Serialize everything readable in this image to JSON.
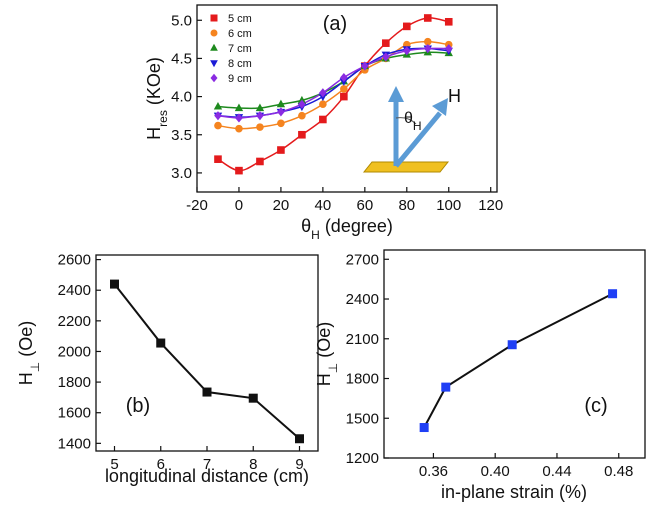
{
  "chart_data": [
    {
      "type": "scatter",
      "panel_label": "(a)",
      "xlabel": [
        {
          "text": "θ"
        },
        {
          "text": "H",
          "sub": true
        },
        {
          "text": " (degree)"
        }
      ],
      "ylabel": [
        {
          "text": "H"
        },
        {
          "text": "res",
          "sub": true
        },
        {
          "text": " (KOe)"
        }
      ],
      "inset_angle": [
        {
          "text": "θ"
        },
        {
          "text": "H",
          "sub": true
        }
      ],
      "inset_field": "H",
      "x": [
        -10,
        0,
        10,
        20,
        30,
        40,
        50,
        60,
        70,
        80,
        90,
        100
      ],
      "series": [
        {
          "name": "5 cm",
          "color": "#e41a1c",
          "marker": "square",
          "values": [
            3.18,
            3.03,
            3.15,
            3.3,
            3.5,
            3.7,
            4.0,
            4.4,
            4.7,
            4.92,
            5.03,
            4.98
          ]
        },
        {
          "name": "6 cm",
          "color": "#f5841f",
          "marker": "circle",
          "values": [
            3.62,
            3.58,
            3.6,
            3.65,
            3.75,
            3.9,
            4.1,
            4.35,
            4.5,
            4.68,
            4.72,
            4.68
          ]
        },
        {
          "name": "7 cm",
          "color": "#1e8a1e",
          "marker": "triangle-up",
          "values": [
            3.87,
            3.85,
            3.85,
            3.9,
            3.95,
            4.05,
            4.2,
            4.4,
            4.5,
            4.55,
            4.58,
            4.57
          ]
        },
        {
          "name": "8 cm",
          "color": "#1a1ad6",
          "marker": "triangle-down",
          "values": [
            3.75,
            3.73,
            3.75,
            3.8,
            3.87,
            4.0,
            4.2,
            4.4,
            4.55,
            4.62,
            4.63,
            4.6
          ]
        },
        {
          "name": "9 cm",
          "color": "#8a2be2",
          "marker": "diamond",
          "values": [
            3.75,
            3.72,
            3.75,
            3.8,
            3.9,
            4.05,
            4.25,
            4.4,
            4.52,
            4.6,
            4.63,
            4.63
          ]
        }
      ],
      "xlim": [
        -20,
        123
      ],
      "xticks": [
        -20,
        0,
        20,
        40,
        60,
        80,
        100,
        120
      ],
      "ylim": [
        2.75,
        5.2
      ],
      "yticks": [
        {
          "value": 3,
          "label": "3.0"
        },
        {
          "value": 3.5,
          "label": "3.5"
        },
        {
          "value": 4,
          "label": "4.0"
        },
        {
          "value": 4.5,
          "label": "4.5"
        },
        {
          "value": 5,
          "label": "5.0"
        }
      ],
      "legend": "top-left"
    },
    {
      "type": "line",
      "panel_label": "(b)",
      "xlabel": [
        {
          "text": "longitudinal distance (cm)"
        }
      ],
      "ylabel": [
        {
          "text": "H"
        },
        {
          "text": "⊥",
          "sub": true
        },
        {
          "text": " (Oe)"
        }
      ],
      "x": [
        5,
        6,
        7,
        8,
        9
      ],
      "series": [
        {
          "color": "#111111",
          "marker": "square",
          "values": [
            2440,
            2055,
            1735,
            1695,
            1430
          ]
        }
      ],
      "line_color": "#111111",
      "xlim": [
        4.6,
        9.4
      ],
      "xticks": [
        5,
        6,
        7,
        8,
        9
      ],
      "ylim": [
        1350,
        2630
      ],
      "yticks": [
        1400,
        1600,
        1800,
        2000,
        2200,
        2400,
        2600
      ]
    },
    {
      "type": "line",
      "panel_label": "(c)",
      "xlabel": [
        {
          "text": "in-plane strain (%)"
        }
      ],
      "ylabel": [
        {
          "text": "H"
        },
        {
          "text": "⊥",
          "sub": true
        },
        {
          "text": " (Oe)"
        }
      ],
      "x": [
        0.354,
        0.368,
        0.411,
        0.476
      ],
      "series": [
        {
          "color": "#1f3ff5",
          "marker": "square",
          "values": [
            1430,
            1735,
            2055,
            2440
          ]
        }
      ],
      "line_color": "#111111",
      "xlim": [
        0.328,
        0.497
      ],
      "xticks": [
        {
          "value": 0.36,
          "label": "0.36"
        },
        {
          "value": 0.4,
          "label": "0.40"
        },
        {
          "value": 0.44,
          "label": "0.44"
        },
        {
          "value": 0.48,
          "label": "0.48"
        }
      ],
      "ylim": [
        1200,
        2770
      ],
      "yticks": [
        1200,
        1500,
        1800,
        2100,
        2400,
        2700
      ]
    }
  ]
}
